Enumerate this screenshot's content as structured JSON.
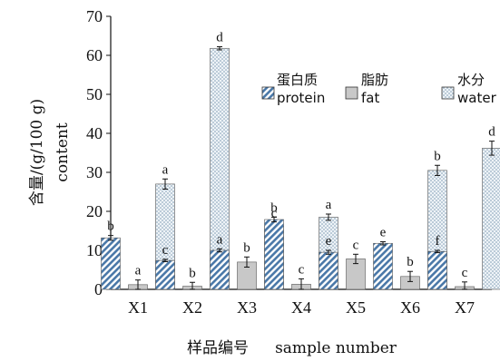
{
  "chart_data": {
    "type": "bar",
    "categories": [
      "X1",
      "X2",
      "X3",
      "X4",
      "X5",
      "X6",
      "X7"
    ],
    "series": [
      {
        "name": "蛋白质 protein",
        "name_zh": "蛋白质",
        "name_en": "protein",
        "pattern": "diagonal-hatch",
        "color": "#4a78a8",
        "values": [
          13.2,
          7.4,
          10.0,
          17.9,
          9.5,
          11.8,
          9.7
        ],
        "errors": [
          0.6,
          0.3,
          0.4,
          0.6,
          0.5,
          0.4,
          0.3
        ],
        "labels": [
          "b",
          "c",
          "a",
          "b",
          "e",
          "e",
          "f"
        ]
      },
      {
        "name": "脂肪 fat",
        "name_zh": "脂肪",
        "name_en": "fat",
        "pattern": "solid-gray",
        "color": "#c8c8c8",
        "values": [
          1.2,
          0.8,
          7.0,
          1.3,
          7.8,
          3.3,
          0.7
        ],
        "errors": [
          1.2,
          1.0,
          1.3,
          1.4,
          1.2,
          1.3,
          1.2
        ],
        "labels": [
          "a",
          "b",
          "b",
          "c",
          "c",
          "b",
          "c"
        ]
      },
      {
        "name": "水分 water",
        "name_zh": "水分",
        "name_en": "water",
        "pattern": "dotted",
        "color": "#9fb6c8",
        "values": [
          27.0,
          61.8,
          16.2,
          18.5,
          0.2,
          30.5,
          36.2
        ],
        "errors": [
          1.3,
          0.4,
          0.9,
          0.8,
          0.1,
          1.3,
          1.8
        ],
        "labels": [
          "a",
          "d",
          "c",
          "a",
          "f",
          "b",
          "d"
        ]
      }
    ],
    "ylabel_zh": "含量/(g/100 g)",
    "ylabel_en": "content",
    "xlabel_zh": "样品编号",
    "xlabel_en": "sample number",
    "ylim": [
      0,
      70
    ],
    "yticks": [
      "0",
      "10",
      "20",
      "30",
      "40",
      "50",
      "60",
      "70"
    ],
    "grid": false,
    "legend_position": "top-right"
  }
}
